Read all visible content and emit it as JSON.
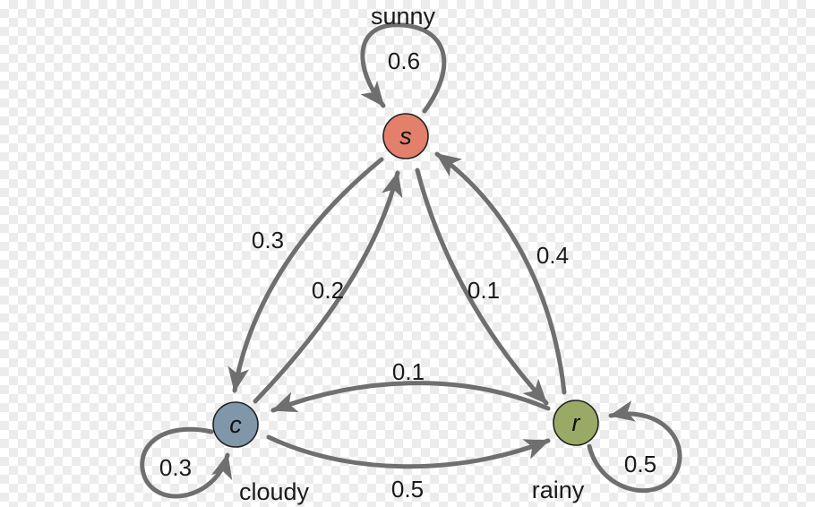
{
  "colors": {
    "edge": "#6f6f6f",
    "sunny": "#e2806b",
    "cloudy": "#7f97a8",
    "rainy": "#9aaa66"
  },
  "nodes": {
    "sunny": {
      "letter": "s",
      "label": "sunny"
    },
    "cloudy": {
      "letter": "c",
      "label": "cloudy"
    },
    "rainy": {
      "letter": "r",
      "label": "rainy"
    }
  },
  "transitions": {
    "sunny_to_sunny": "0.6",
    "sunny_to_cloudy": "0.3",
    "cloudy_to_sunny": "0.2",
    "sunny_to_rainy": "0.1",
    "rainy_to_sunny": "0.4",
    "rainy_to_cloudy": "0.1",
    "cloudy_to_rainy": "0.5",
    "cloudy_to_cloudy": "0.3",
    "rainy_to_rainy": "0.5"
  }
}
